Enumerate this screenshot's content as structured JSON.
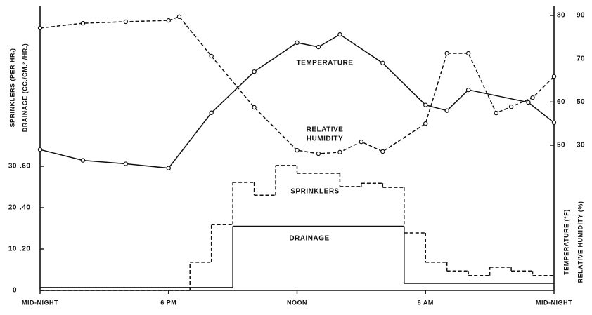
{
  "chart_data": [
    {
      "type": "line",
      "xlim": [
        0,
        24
      ],
      "xticks": [
        {
          "value": 0,
          "label": "MID-NIGHT"
        },
        {
          "value": 6,
          "label": "6 PM"
        },
        {
          "value": 12,
          "label": "NOON"
        },
        {
          "value": 18,
          "label": "6 AM"
        },
        {
          "value": 24,
          "label": "MID-NIGHT"
        }
      ],
      "ylabel": "TEMPERATURE (°F)",
      "y2label": "RELATIVE HUMIDITY (%)",
      "ylim": [
        50,
        80
      ],
      "yticks": [
        50,
        60,
        80
      ],
      "y2lim": [
        30,
        90
      ],
      "y2ticks": [
        30,
        50,
        70,
        90
      ],
      "annotations": [
        "TEMPERATURE",
        "RELATIVE",
        "HUMIDITY"
      ],
      "series": [
        {
          "name": "TEMPERATURE",
          "color": "#111",
          "dashed": false,
          "x": [
            0,
            2,
            4,
            6,
            8,
            10,
            12,
            13,
            14,
            16,
            18,
            19,
            20,
            22.8,
            24
          ],
          "values": [
            49.0,
            46.5,
            45.7,
            44.7,
            57.5,
            67.0,
            73.7,
            72.7,
            75.6,
            69.0,
            59.3,
            58.0,
            62.8,
            59.9,
            55.2
          ]
        },
        {
          "name": "RELATIVE HUMIDITY",
          "color": "#111",
          "dashed": true,
          "axis": "y2",
          "x": [
            0,
            2,
            4,
            6,
            6.5,
            8,
            10,
            12,
            13,
            14,
            15,
            16,
            18,
            19,
            20,
            21.3,
            22,
            23,
            24
          ],
          "values": [
            84.2,
            86.4,
            87.1,
            87.7,
            89.4,
            71.2,
            47.5,
            27.7,
            26.1,
            26.8,
            31.6,
            27.1,
            40.0,
            72.5,
            72.5,
            44.9,
            47.8,
            52.0,
            61.8
          ]
        }
      ]
    },
    {
      "type": "step",
      "ylabel": "SPRINKLERS (PER HR.)",
      "y2label": "DRAINAGE (CC./CM.² /HR.)",
      "ylim": [
        0,
        30
      ],
      "yticks": [
        0,
        10,
        20,
        30
      ],
      "y2lim": [
        0,
        0.6
      ],
      "y2ticks": [
        {
          "value": 0.2,
          "label": ".20"
        },
        {
          "value": 0.4,
          "label": ".40"
        },
        {
          "value": 0.6,
          "label": ".60"
        }
      ],
      "series": [
        {
          "name": "SPRINKLERS",
          "color": "#111",
          "dashed": true,
          "bins": [
            0,
            7,
            8,
            9,
            10,
            11,
            12,
            14,
            15,
            16,
            17,
            18,
            19,
            20,
            21,
            22,
            23,
            24
          ],
          "values": [
            0,
            6.8,
            15.9,
            26.1,
            23,
            30.2,
            28.3,
            25.1,
            25.9,
            24.9,
            13.9,
            6.8,
            4.7,
            3.6,
            5.6,
            4.7,
            3.6
          ]
        },
        {
          "name": "DRAINAGE",
          "color": "#111",
          "dashed": false,
          "axis": "y2",
          "bins": [
            0,
            9,
            17,
            24
          ],
          "values": [
            0.014,
            0.31,
            0.034
          ]
        }
      ]
    }
  ]
}
